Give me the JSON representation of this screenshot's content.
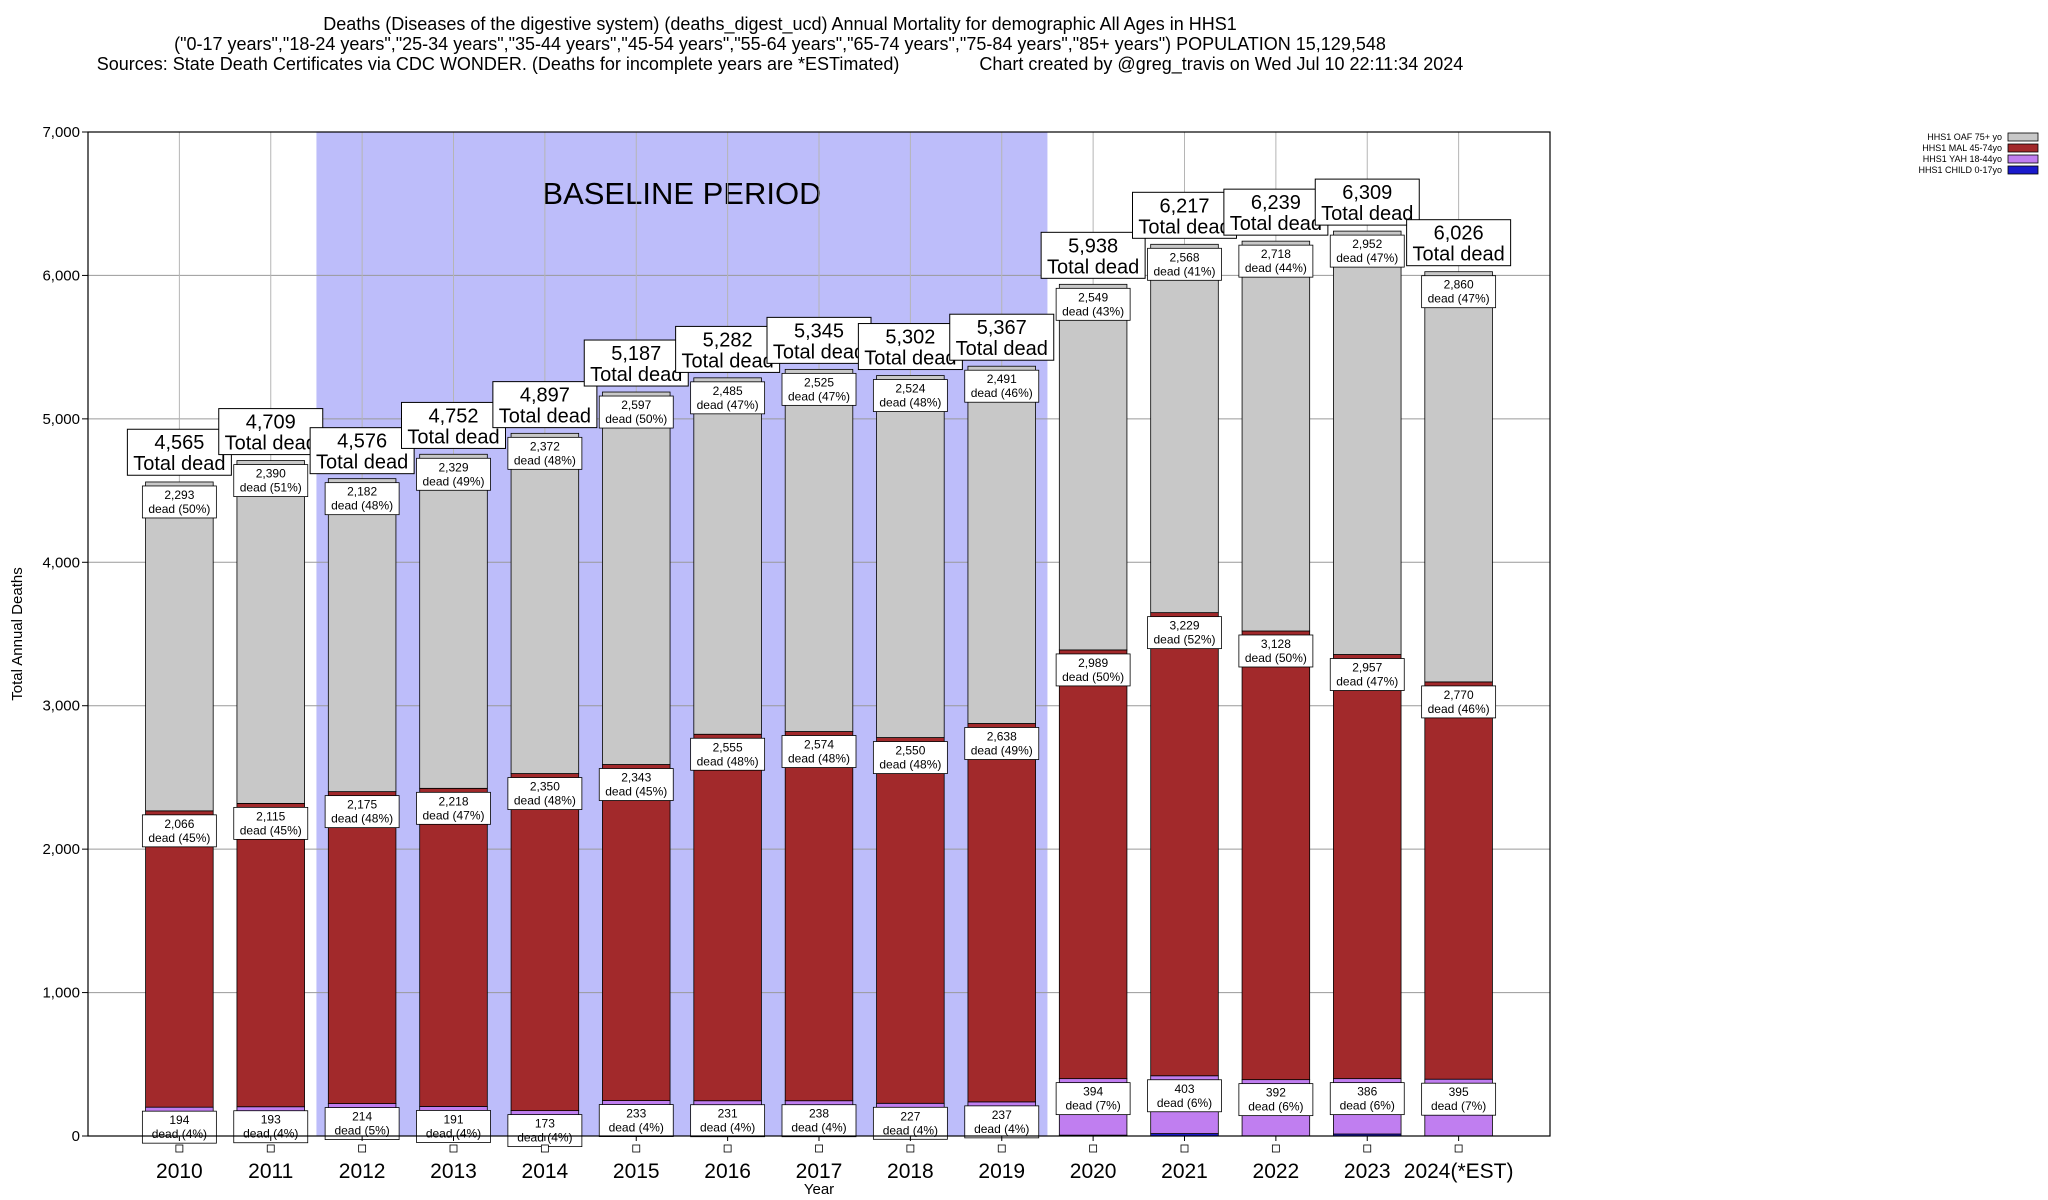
{
  "header": {
    "line1": "Deaths (Diseases of the digestive system) (deaths_digest_ucd) Annual Mortality for demographic All Ages in HHS1",
    "line2": "(\"0-17 years\",\"18-24 years\",\"25-34 years\",\"35-44 years\",\"45-54 years\",\"55-64 years\",\"65-74 years\",\"75-84 years\",\"85+ years\") POPULATION 15,129,548",
    "line3": "Sources: State Death Certificates via CDC WONDER. (Deaths for incomplete years are *ESTimated)                Chart created by @greg_travis on Wed Jul 10 22:11:34 2024"
  },
  "chart_data": {
    "type": "bar",
    "stacked": true,
    "xlabel": "Year",
    "ylabel": "Total Annual Deaths",
    "ylim": [
      0,
      7000
    ],
    "yticks": [
      0,
      1000,
      2000,
      3000,
      4000,
      5000,
      6000,
      7000
    ],
    "ytick_labels": [
      "0",
      "1,000",
      "2,000",
      "3,000",
      "4,000",
      "5,000",
      "6,000",
      "7,000"
    ],
    "grid": true,
    "legend_position": "top-right",
    "categories": [
      "2010",
      "2011",
      "2012",
      "2013",
      "2014",
      "2015",
      "2016",
      "2017",
      "2018",
      "2019",
      "2020",
      "2021",
      "2022",
      "2023",
      "2024(*EST)"
    ],
    "baseline_period": {
      "label": "BASELINE PERIOD",
      "start": "2012",
      "end": "2019"
    },
    "total_label_suffix": "Total dead",
    "totals": [
      4565,
      4709,
      4576,
      4752,
      4897,
      5187,
      5282,
      5345,
      5302,
      5367,
      5938,
      6217,
      6239,
      6309,
      6026
    ],
    "totals_display": [
      "4,565",
      "4,709",
      "4,576",
      "4,752",
      "4,897",
      "5,187",
      "5,282",
      "5,345",
      "5,302",
      "5,367",
      "5,938",
      "6,217",
      "6,239",
      "6,309",
      "6,026"
    ],
    "series": [
      {
        "name": "HHS1 CHILD 0-17yo",
        "color": "#1a1acc",
        "values": [
          7,
          11,
          12,
          15,
          4,
          14,
          15,
          8,
          1,
          1,
          6,
          17,
          1,
          14,
          1
        ],
        "labels": [
          "",
          "",
          "",
          "",
          "",
          "",
          "",
          "",
          "",
          "",
          "",
          "",
          "",
          "",
          ""
        ]
      },
      {
        "name": "HHS1 YAH 18-44yo",
        "color": "#c07ef0",
        "values": [
          194,
          193,
          214,
          191,
          173,
          233,
          231,
          238,
          227,
          237,
          394,
          403,
          392,
          386,
          395
        ],
        "labels": [
          "194\ndead (4%)",
          "193\ndead (4%)",
          "214\ndead (5%)",
          "191\ndead (4%)",
          "173\ndead (4%)",
          "233\ndead (4%)",
          "231\ndead (4%)",
          "238\ndead (4%)",
          "227\ndead (4%)",
          "237\ndead (4%)",
          "394\ndead (7%)",
          "403\ndead (6%)",
          "392\ndead (6%)",
          "386\ndead (6%)",
          "395\ndead (7%)"
        ]
      },
      {
        "name": "HHS1 MAL 45-74yo",
        "color": "#a2292b",
        "values": [
          2066,
          2115,
          2175,
          2218,
          2350,
          2343,
          2555,
          2574,
          2550,
          2638,
          2989,
          3229,
          3128,
          2957,
          2770
        ],
        "labels": [
          "2,066\ndead (45%)",
          "2,115\ndead (45%)",
          "2,175\ndead (48%)",
          "2,218\ndead (47%)",
          "2,350\ndead (48%)",
          "2,343\ndead (45%)",
          "2,555\ndead (48%)",
          "2,574\ndead (48%)",
          "2,550\ndead (48%)",
          "2,638\ndead (49%)",
          "2,989\ndead (50%)",
          "3,229\ndead (52%)",
          "3,128\ndead (50%)",
          "2,957\ndead (47%)",
          "2,770\ndead (46%)"
        ]
      },
      {
        "name": "HHS1 OAF 75+ yo",
        "color": "#c8c8c8",
        "values": [
          2293,
          2390,
          2182,
          2329,
          2372,
          2597,
          2485,
          2525,
          2524,
          2491,
          2549,
          2568,
          2718,
          2952,
          2860
        ],
        "labels": [
          "2,293\ndead (50%)",
          "2,390\ndead (51%)",
          "2,182\ndead (48%)",
          "2,329\ndead (49%)",
          "2,372\ndead (48%)",
          "2,597\ndead (50%)",
          "2,485\ndead (47%)",
          "2,525\ndead (47%)",
          "2,524\ndead (48%)",
          "2,491\ndead (46%)",
          "2,549\ndead (43%)",
          "2,568\ndead (41%)",
          "2,718\ndead (44%)",
          "2,952\ndead (47%)",
          "2,860\ndead (47%)"
        ]
      }
    ],
    "legend_order": [
      "HHS1 OAF 75+ yo",
      "HHS1 MAL 45-74yo",
      "HHS1 YAH 18-44yo",
      "HHS1 CHILD 0-17yo"
    ]
  }
}
